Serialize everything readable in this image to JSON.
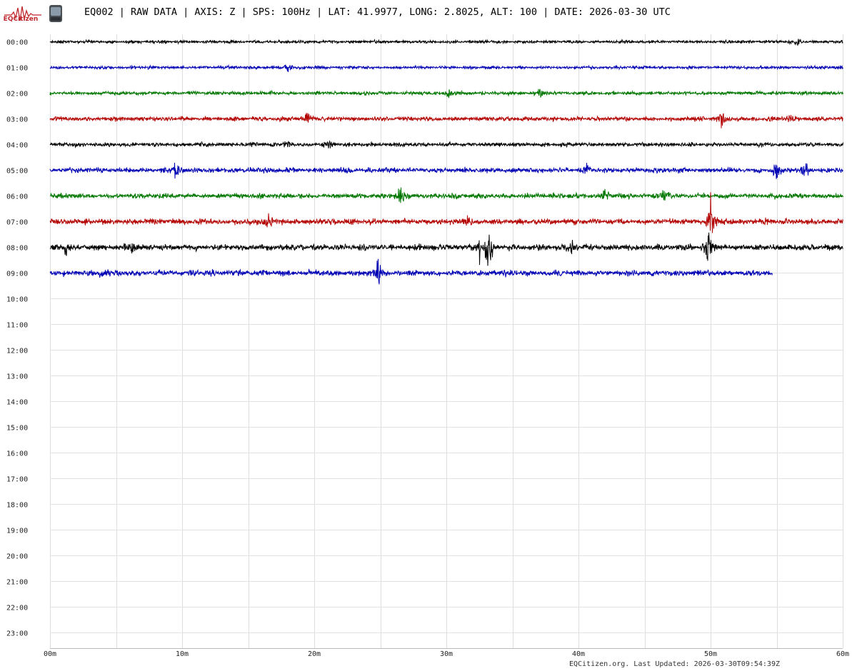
{
  "header": {
    "title": "EQ002 | RAW DATA | AXIS: Z | SPS: 100Hz | LAT: 41.9977, LONG: 2.8025, ALT: 100 | DATE: 2026-03-30 UTC",
    "logo_text": "EQCitizen",
    "icons": [
      "eqcitizen-logo-icon",
      "sensor-device-icon"
    ]
  },
  "footer": {
    "text": "EQCitizen.org. Last Updated: 2026-03-30T09:54:39Z"
  },
  "chart_data": {
    "type": "line",
    "subtype": "helicorder",
    "title": "EQ002 | RAW DATA | AXIS: Z | SPS: 100Hz | LAT: 41.9977, LONG: 2.8025, ALT: 100 | DATE: 2026-03-30 UTC",
    "x_ticks": [
      "00m",
      "10m",
      "20m",
      "30m",
      "40m",
      "50m",
      "60m"
    ],
    "x_range_minutes": [
      0,
      60
    ],
    "x_grid_step_minutes": 5,
    "y_ticks": [
      "00:00",
      "01:00",
      "02:00",
      "03:00",
      "04:00",
      "05:00",
      "06:00",
      "07:00",
      "08:00",
      "09:00",
      "10:00",
      "11:00",
      "12:00",
      "13:00",
      "14:00",
      "15:00",
      "16:00",
      "17:00",
      "18:00",
      "19:00",
      "20:00",
      "21:00",
      "22:00",
      "23:00"
    ],
    "grid": true,
    "line_colors": [
      "#000000",
      "#0000b4",
      "#007800",
      "#b40000"
    ],
    "series": [
      {
        "hour_index": 0,
        "end_minute": 60,
        "amplitude": 0.45,
        "events": [
          {
            "minute": 56.5,
            "amp": 1.4
          }
        ]
      },
      {
        "hour_index": 1,
        "end_minute": 60,
        "amplitude": 0.45,
        "events": [
          {
            "minute": 18,
            "amp": 1.8
          }
        ]
      },
      {
        "hour_index": 2,
        "end_minute": 60,
        "amplitude": 0.55,
        "events": [
          {
            "minute": 30.2,
            "amp": 1.4
          },
          {
            "minute": 37.1,
            "amp": 1.6
          }
        ]
      },
      {
        "hour_index": 3,
        "end_minute": 60,
        "amplitude": 0.65,
        "events": [
          {
            "minute": 19.5,
            "amp": 2.4
          },
          {
            "minute": 50.8,
            "amp": 3.0
          },
          {
            "minute": 56,
            "amp": 2.2
          }
        ]
      },
      {
        "hour_index": 4,
        "end_minute": 60,
        "amplitude": 0.6,
        "events": [
          {
            "minute": 18,
            "amp": 2.0
          },
          {
            "minute": 21,
            "amp": 1.6
          }
        ]
      },
      {
        "hour_index": 5,
        "end_minute": 60,
        "amplitude": 0.75,
        "events": [
          {
            "minute": 9.5,
            "amp": 3.0
          },
          {
            "minute": 40.5,
            "amp": 2.4
          },
          {
            "minute": 55,
            "amp": 4.2
          },
          {
            "minute": 57.2,
            "amp": 3.0
          }
        ]
      },
      {
        "hour_index": 6,
        "end_minute": 60,
        "amplitude": 0.75,
        "events": [
          {
            "minute": 26.5,
            "amp": 3.6
          },
          {
            "minute": 42,
            "amp": 2.0
          },
          {
            "minute": 46.5,
            "amp": 3.0
          }
        ]
      },
      {
        "hour_index": 7,
        "end_minute": 60,
        "amplitude": 0.85,
        "events": [
          {
            "minute": 16.5,
            "amp": 2.8
          },
          {
            "minute": 31.5,
            "amp": 2.6
          },
          {
            "minute": 50,
            "amp": 8.5
          }
        ]
      },
      {
        "hour_index": 8,
        "end_minute": 60,
        "amplitude": 0.9,
        "events": [
          {
            "minute": 1.2,
            "amp": 2.4
          },
          {
            "minute": 6.2,
            "amp": 2.6
          },
          {
            "minute": 32.5,
            "amp": 3.8
          },
          {
            "minute": 33.2,
            "amp": 8.8
          },
          {
            "minute": 39.5,
            "amp": 3.2
          },
          {
            "minute": 49.8,
            "amp": 6.5
          }
        ]
      },
      {
        "hour_index": 9,
        "end_minute": 54.65,
        "amplitude": 0.85,
        "events": [
          {
            "minute": 4,
            "amp": 2.2
          },
          {
            "minute": 24.8,
            "amp": 4.2
          }
        ]
      }
    ]
  }
}
